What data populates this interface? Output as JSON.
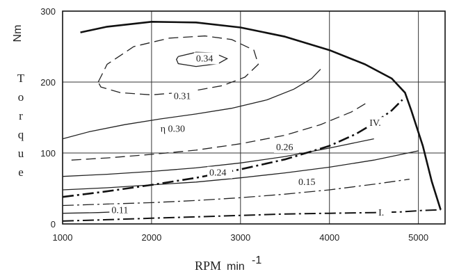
{
  "chart_data": {
    "type": "line",
    "title": "",
    "xlabel": "RPM",
    "xunit": "min",
    "xunit_exp": "-1",
    "ylabel": "Torque",
    "yunit": "Nm",
    "xlim": [
      1000,
      5300
    ],
    "ylim": [
      0,
      300
    ],
    "xticks": [
      1000,
      2000,
      3000,
      4000,
      5000
    ],
    "yticks": [
      0,
      100,
      200,
      300
    ],
    "grid": true,
    "full_load_curve": {
      "x": [
        1200,
        1500,
        2000,
        2500,
        3000,
        3500,
        4000,
        4400,
        4700,
        4850,
        4920,
        5050,
        5150,
        5250
      ],
      "y": [
        270,
        278,
        285,
        284,
        277,
        264,
        245,
        225,
        205,
        185,
        160,
        110,
        60,
        20
      ]
    },
    "contours": [
      {
        "label": "0.34",
        "x": [
          2300,
          2500,
          2700,
          2850,
          2750,
          2500,
          2300,
          2280,
          2300
        ],
        "y": [
          236,
          242,
          241,
          233,
          226,
          222,
          226,
          232,
          236
        ],
        "style": "solid"
      },
      {
        "label": "0.31",
        "x": [
          1400,
          1500,
          1800,
          2200,
          2600,
          2900,
          3150,
          3200,
          3050,
          2800,
          2400,
          2000,
          1650,
          1430,
          1400
        ],
        "y": [
          200,
          225,
          250,
          262,
          265,
          260,
          245,
          225,
          207,
          195,
          186,
          182,
          185,
          193,
          200
        ],
        "style": "dashed"
      },
      {
        "label": "η 0.30",
        "label_symbol": "η",
        "x": [
          1000,
          1300,
          1700,
          2100,
          2500,
          2900,
          3300,
          3600,
          3800,
          3900
        ],
        "y": [
          120,
          130,
          140,
          148,
          155,
          163,
          175,
          190,
          205,
          218
        ],
        "style": "solid"
      },
      {
        "label": "0.26",
        "x": [
          1100,
          1500,
          2000,
          2500,
          3000,
          3500,
          3900,
          4250,
          4450
        ],
        "y": [
          90,
          93,
          98,
          104,
          113,
          125,
          140,
          158,
          173
        ],
        "style": "dashed"
      },
      {
        "label": "0.24",
        "x": [
          1000,
          1500,
          2000,
          2500,
          3000,
          3500,
          4000,
          4500
        ],
        "y": [
          67,
          70,
          74,
          79,
          86,
          95,
          107,
          120
        ],
        "style": "solid"
      },
      {
        "label": "0.15",
        "x": [
          1000,
          1500,
          2000,
          2500,
          3000,
          3500,
          4000,
          4500,
          5000
        ],
        "y": [
          48,
          51,
          55,
          59,
          65,
          72,
          80,
          90,
          103
        ],
        "style": "solid"
      },
      {
        "label": "0.11",
        "x": [
          1000,
          1500,
          2000,
          2500,
          3000,
          3500,
          4000,
          4500,
          4900
        ],
        "y": [
          26,
          28,
          30,
          33,
          37,
          42,
          48,
          56,
          63
        ],
        "style": "dashdot"
      },
      {
        "label": "",
        "x": [
          1000,
          1400,
          1800
        ],
        "y": [
          15,
          16,
          18
        ],
        "style": "solid"
      }
    ],
    "operating_lines": [
      {
        "label": "IV.",
        "x": [
          1000,
          1500,
          2000,
          2500,
          3000,
          3500,
          4000,
          4300,
          4500,
          4700,
          4820
        ],
        "y": [
          38,
          46,
          55,
          65,
          77,
          91,
          110,
          127,
          142,
          160,
          175
        ],
        "style": "dashdot"
      },
      {
        "label": "I.",
        "x": [
          1000,
          1500,
          2000,
          2500,
          3000,
          3500,
          4000,
          4500,
          4800,
          5050,
          5250
        ],
        "y": [
          4,
          6,
          8,
          10,
          12,
          14,
          15,
          16,
          17,
          19,
          20
        ],
        "style": "dashdot"
      }
    ]
  }
}
